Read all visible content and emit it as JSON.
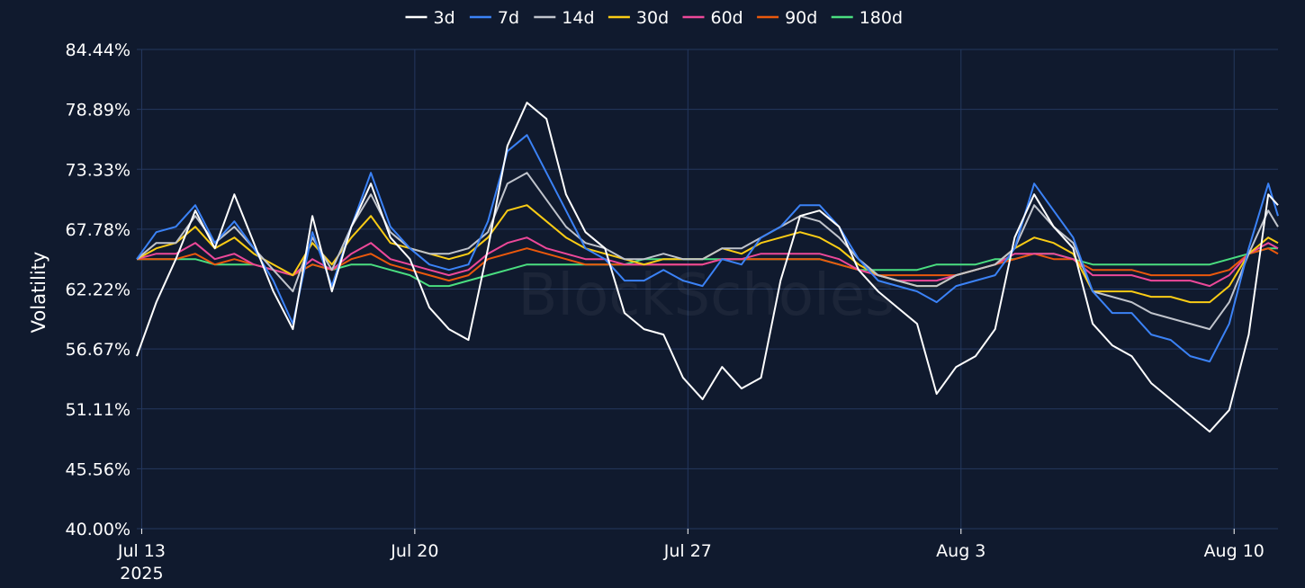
{
  "chart_data": {
    "type": "line",
    "title": "",
    "xlabel": "",
    "ylabel": "Volatility",
    "watermark": "BlockScholes",
    "ylim": [
      40.0,
      84.44
    ],
    "y_ticks": [
      40.0,
      45.56,
      51.11,
      56.67,
      62.22,
      67.78,
      73.33,
      78.89,
      84.44
    ],
    "y_tick_labels": [
      "40.00%",
      "45.56%",
      "51.11%",
      "56.67%",
      "62.22%",
      "67.78%",
      "73.33%",
      "78.89%",
      "84.44%"
    ],
    "x_range": [
      "2025-07-12T21:00",
      "2025-08-11T03:00"
    ],
    "x_ticks": [
      "2025-07-13",
      "2025-07-20",
      "2025-07-27",
      "2025-08-03",
      "2025-08-10"
    ],
    "x_tick_labels": [
      "Jul 13",
      "Jul 20",
      "Jul 27",
      "Aug 3",
      "Aug 10"
    ],
    "x_tick_sublabels": [
      "2025",
      "",
      "",
      "",
      ""
    ],
    "grid": true,
    "legend_position": "top-center",
    "colors": {
      "background": "#101a2e",
      "grid": "#24385e",
      "text": "#ffffff"
    },
    "x": [
      "2025-07-12T21:00",
      "2025-07-13T09:00",
      "2025-07-13T21:00",
      "2025-07-14T09:00",
      "2025-07-14T21:00",
      "2025-07-15T09:00",
      "2025-07-15T21:00",
      "2025-07-16T09:00",
      "2025-07-16T21:00",
      "2025-07-17T09:00",
      "2025-07-17T21:00",
      "2025-07-18T09:00",
      "2025-07-18T21:00",
      "2025-07-19T09:00",
      "2025-07-19T21:00",
      "2025-07-20T09:00",
      "2025-07-20T21:00",
      "2025-07-21T09:00",
      "2025-07-21T21:00",
      "2025-07-22T09:00",
      "2025-07-22T21:00",
      "2025-07-23T09:00",
      "2025-07-23T21:00",
      "2025-07-24T09:00",
      "2025-07-24T21:00",
      "2025-07-25T09:00",
      "2025-07-25T21:00",
      "2025-07-26T09:00",
      "2025-07-26T21:00",
      "2025-07-27T09:00",
      "2025-07-27T21:00",
      "2025-07-28T09:00",
      "2025-07-28T21:00",
      "2025-07-29T09:00",
      "2025-07-29T21:00",
      "2025-07-30T09:00",
      "2025-07-30T21:00",
      "2025-07-31T09:00",
      "2025-07-31T21:00",
      "2025-08-01T09:00",
      "2025-08-01T21:00",
      "2025-08-02T09:00",
      "2025-08-02T21:00",
      "2025-08-03T09:00",
      "2025-08-03T21:00",
      "2025-08-04T09:00",
      "2025-08-04T21:00",
      "2025-08-05T09:00",
      "2025-08-05T21:00",
      "2025-08-06T09:00",
      "2025-08-06T21:00",
      "2025-08-07T09:00",
      "2025-08-07T21:00",
      "2025-08-08T09:00",
      "2025-08-08T21:00",
      "2025-08-09T09:00",
      "2025-08-09T21:00",
      "2025-08-10T09:00",
      "2025-08-10T21:00",
      "2025-08-11T03:00"
    ],
    "series": [
      {
        "name": "3d",
        "color": "#ffffff",
        "values": [
          56.0,
          61.0,
          65.0,
          69.5,
          66.0,
          71.0,
          66.5,
          62.0,
          58.5,
          69.0,
          62.0,
          68.0,
          72.0,
          67.0,
          65.0,
          60.5,
          58.5,
          57.5,
          66.0,
          75.5,
          79.5,
          78.0,
          71.0,
          67.5,
          66.0,
          60.0,
          58.5,
          58.0,
          54.0,
          52.0,
          55.0,
          53.0,
          54.0,
          63.0,
          69.0,
          69.5,
          68.0,
          64.0,
          62.0,
          60.5,
          59.0,
          52.5,
          55.0,
          56.0,
          58.5,
          67.0,
          71.0,
          68.0,
          66.0,
          59.0,
          57.0,
          56.0,
          53.5,
          52.0,
          50.5,
          49.0,
          51.0,
          58.0,
          71.0,
          70.0
        ]
      },
      {
        "name": "7d",
        "color": "#3b82f6",
        "values": [
          65.0,
          67.5,
          68.0,
          70.0,
          66.5,
          68.5,
          66.0,
          63.0,
          59.0,
          67.5,
          62.5,
          68.0,
          73.0,
          68.0,
          66.0,
          64.5,
          64.0,
          64.5,
          68.5,
          75.0,
          76.5,
          73.0,
          69.5,
          66.0,
          65.0,
          63.0,
          63.0,
          64.0,
          63.0,
          62.5,
          65.0,
          64.5,
          67.0,
          68.0,
          70.0,
          70.0,
          68.0,
          65.0,
          63.0,
          62.5,
          62.0,
          61.0,
          62.5,
          63.0,
          63.5,
          66.0,
          72.0,
          69.5,
          67.0,
          62.0,
          60.0,
          60.0,
          58.0,
          57.5,
          56.0,
          55.5,
          59.0,
          66.0,
          72.0,
          69.0
        ]
      },
      {
        "name": "14d",
        "color": "#c0c4cc",
        "values": [
          65.0,
          66.5,
          66.5,
          69.0,
          66.5,
          68.0,
          66.0,
          64.0,
          62.0,
          67.0,
          64.0,
          68.0,
          71.0,
          67.5,
          66.0,
          65.5,
          65.5,
          66.0,
          67.5,
          72.0,
          73.0,
          70.5,
          68.0,
          66.5,
          66.0,
          65.0,
          65.0,
          65.5,
          65.0,
          65.0,
          66.0,
          66.0,
          67.0,
          68.0,
          69.0,
          68.5,
          67.0,
          65.0,
          63.5,
          63.0,
          62.5,
          62.5,
          63.5,
          64.0,
          64.5,
          66.0,
          70.0,
          68.0,
          66.5,
          62.0,
          61.5,
          61.0,
          60.0,
          59.5,
          59.0,
          58.5,
          61.0,
          65.5,
          69.5,
          68.0
        ]
      },
      {
        "name": "30d",
        "color": "#facc15",
        "values": [
          65.0,
          66.0,
          66.5,
          68.0,
          66.0,
          67.0,
          65.5,
          64.5,
          63.5,
          66.5,
          64.5,
          67.0,
          69.0,
          66.5,
          66.0,
          65.5,
          65.0,
          65.5,
          67.0,
          69.5,
          70.0,
          68.5,
          67.0,
          66.0,
          65.5,
          65.0,
          64.5,
          65.0,
          65.0,
          65.0,
          66.0,
          65.5,
          66.5,
          67.0,
          67.5,
          67.0,
          66.0,
          64.5,
          63.5,
          63.0,
          62.5,
          62.5,
          63.5,
          64.0,
          64.5,
          66.0,
          67.0,
          66.5,
          65.5,
          62.0,
          62.0,
          62.0,
          61.5,
          61.5,
          61.0,
          61.0,
          62.5,
          65.5,
          67.0,
          66.5
        ]
      },
      {
        "name": "60d",
        "color": "#ec4899",
        "values": [
          65.0,
          65.5,
          65.5,
          66.5,
          65.0,
          65.5,
          64.5,
          64.0,
          63.5,
          65.0,
          64.0,
          65.5,
          66.5,
          65.0,
          64.5,
          64.0,
          63.5,
          64.0,
          65.5,
          66.5,
          67.0,
          66.0,
          65.5,
          65.0,
          65.0,
          64.5,
          64.5,
          64.5,
          64.5,
          64.5,
          65.0,
          65.0,
          65.5,
          65.5,
          65.5,
          65.5,
          65.0,
          64.0,
          63.5,
          63.0,
          63.0,
          63.0,
          63.5,
          64.0,
          64.5,
          65.5,
          65.5,
          65.5,
          65.0,
          63.5,
          63.5,
          63.5,
          63.0,
          63.0,
          63.0,
          62.5,
          63.5,
          65.5,
          66.5,
          66.0
        ]
      },
      {
        "name": "90d",
        "color": "#ea580c",
        "values": [
          65.0,
          65.0,
          65.0,
          65.5,
          64.5,
          65.0,
          64.5,
          64.0,
          63.5,
          64.5,
          64.0,
          65.0,
          65.5,
          64.5,
          64.0,
          63.5,
          63.0,
          63.5,
          65.0,
          65.5,
          66.0,
          65.5,
          65.0,
          64.5,
          64.5,
          64.5,
          64.5,
          64.5,
          64.5,
          64.5,
          65.0,
          65.0,
          65.0,
          65.0,
          65.0,
          65.0,
          64.5,
          64.0,
          63.5,
          63.5,
          63.5,
          63.5,
          63.5,
          64.0,
          64.5,
          65.0,
          65.5,
          65.0,
          65.0,
          64.0,
          64.0,
          64.0,
          63.5,
          63.5,
          63.5,
          63.5,
          64.0,
          65.5,
          66.0,
          65.5
        ]
      },
      {
        "name": "180d",
        "color": "#4ade80",
        "values": [
          65.0,
          65.0,
          65.0,
          65.0,
          64.5,
          64.5,
          64.5,
          64.0,
          63.5,
          64.5,
          64.0,
          64.5,
          64.5,
          64.0,
          63.5,
          62.5,
          62.5,
          63.0,
          63.5,
          64.0,
          64.5,
          64.5,
          64.5,
          64.5,
          64.5,
          64.5,
          65.0,
          65.0,
          65.0,
          65.0,
          65.0,
          65.0,
          65.0,
          65.0,
          65.0,
          65.0,
          64.5,
          64.0,
          64.0,
          64.0,
          64.0,
          64.5,
          64.5,
          64.5,
          65.0,
          65.0,
          65.5,
          65.5,
          65.0,
          64.5,
          64.5,
          64.5,
          64.5,
          64.5,
          64.5,
          64.5,
          65.0,
          65.5,
          66.0,
          66.0
        ]
      }
    ]
  }
}
